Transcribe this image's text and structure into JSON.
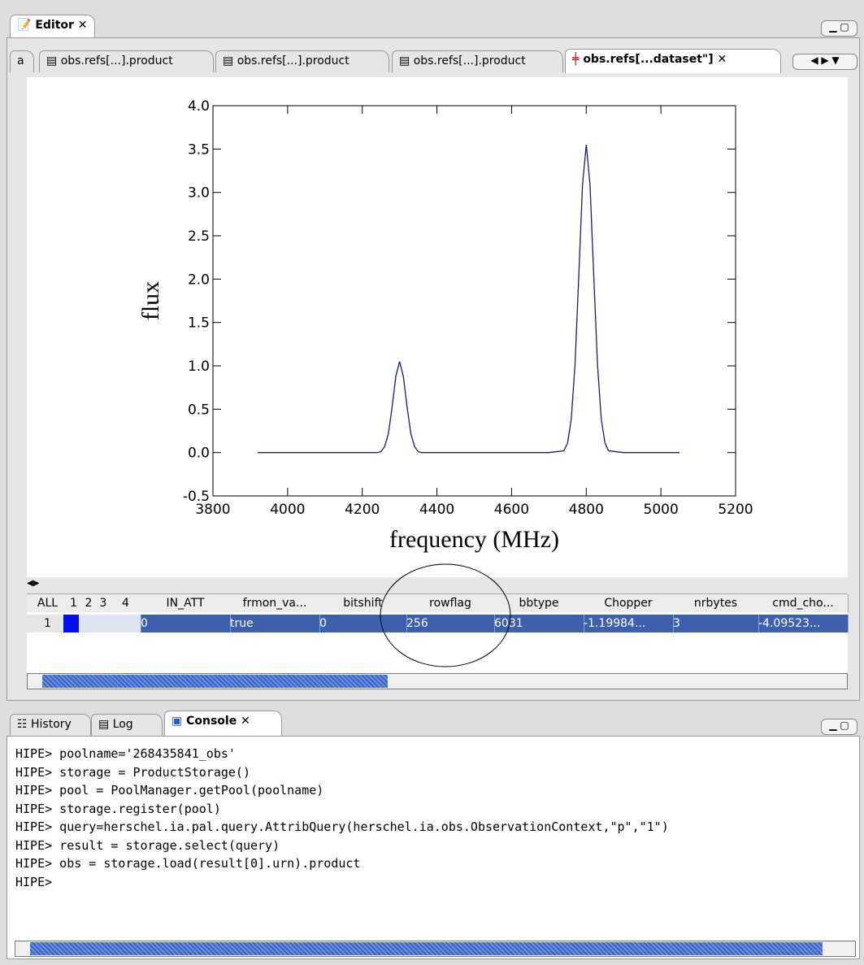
{
  "editor": {
    "title": "Editor",
    "tabs": [
      "a",
      "obs.refs[...].product",
      "obs.refs[...].product",
      "obs.refs[...].product",
      "obs.refs[...dataset\"]"
    ]
  },
  "chart_data": {
    "type": "line",
    "x_label": "frequency (MHz)",
    "y_label": "flux",
    "color": "#1a1a7a",
    "x": [
      3920,
      4000,
      4100,
      4200,
      4240,
      4250,
      4260,
      4270,
      4280,
      4290,
      4300,
      4310,
      4320,
      4330,
      4340,
      4350,
      4360,
      4400,
      4500,
      4600,
      4700,
      4740,
      4750,
      4760,
      4770,
      4780,
      4790,
      4800,
      4810,
      4820,
      4830,
      4840,
      4850,
      4860,
      4900,
      5000,
      5050
    ],
    "values": [
      0,
      0,
      0,
      0,
      0,
      0.01,
      0.07,
      0.22,
      0.53,
      0.88,
      1.05,
      0.88,
      0.53,
      0.22,
      0.07,
      0.01,
      0,
      0,
      0,
      0,
      0,
      0.02,
      0.11,
      0.39,
      1.02,
      2.04,
      3.09,
      3.55,
      3.09,
      2.04,
      1.02,
      0.39,
      0.11,
      0.02,
      0,
      0,
      0
    ],
    "xlim": [
      3800,
      5200
    ],
    "xticks": [
      3800,
      4000,
      4200,
      4400,
      4600,
      4800,
      5000,
      5200
    ],
    "ylim": [
      -0.5,
      4.0
    ],
    "yticks": [
      -0.5,
      {
        "value": 0,
        "label": "0.0"
      },
      0.5,
      {
        "value": 1,
        "label": "1.0"
      },
      1.5,
      {
        "value": 2,
        "label": "2.0"
      },
      2.5,
      {
        "value": 3,
        "label": "3.0"
      },
      3.5,
      {
        "value": 4,
        "label": "4.0"
      }
    ]
  },
  "table": {
    "headers": [
      "ALL",
      "1",
      "2",
      "3",
      "4",
      "IN_ATT",
      "frmon_va...",
      "bitshift",
      "rowflag",
      "bbtype",
      "Chopper",
      "nrbytes",
      "cmd_cho..."
    ],
    "rows": [
      [
        "1",
        "0",
        "true",
        "0",
        "256",
        "6031",
        "-1.19984...",
        "3",
        "-4.09523..."
      ]
    ]
  },
  "console": {
    "tabs": [
      "History",
      "Log",
      "Console"
    ],
    "lines": [
      "HIPE> poolname='268435841_obs'",
      "HIPE> storage = ProductStorage()",
      "HIPE> pool = PoolManager.getPool(poolname)",
      "HIPE> storage.register(pool)",
      "HIPE> query=herschel.ia.pal.query.AttribQuery(herschel.ia.obs.ObservationContext,\"p\",\"1\")",
      "HIPE> result = storage.select(query)",
      "HIPE> obs = storage.load(result[0].urn).product",
      "HIPE>"
    ]
  }
}
